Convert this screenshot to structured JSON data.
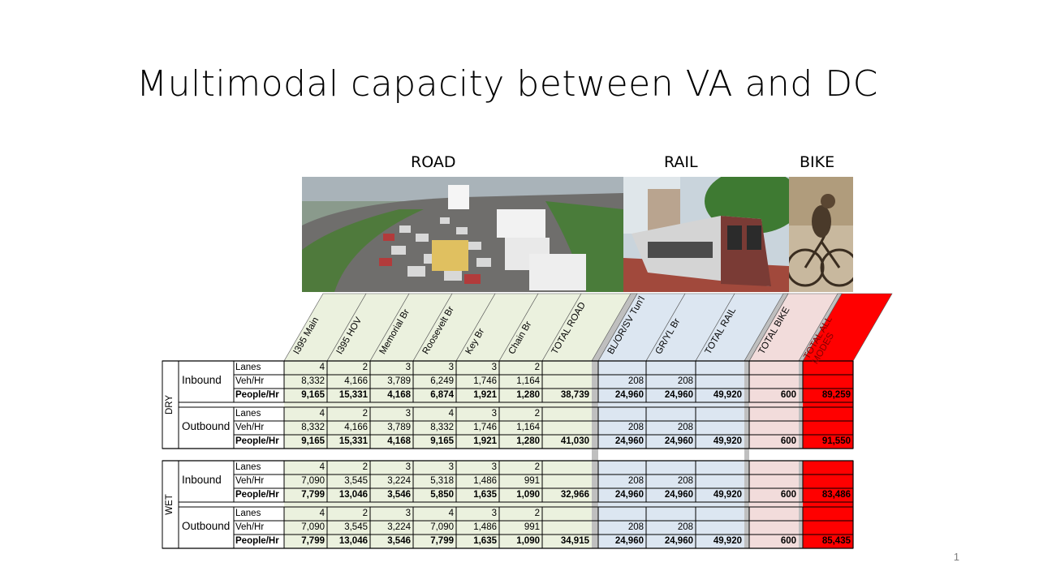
{
  "slide": {
    "title": "Multimodal capacity between VA and DC",
    "page_number": "1"
  },
  "sections": {
    "road": "ROAD",
    "rail": "RAIL",
    "bike": "BIKE"
  },
  "images": [
    {
      "name": "road-traffic-photo",
      "desc_icon": "highway-traffic-icon"
    },
    {
      "name": "rail-train-photo",
      "desc_icon": "metro-train-icon"
    },
    {
      "name": "bike-cyclist-photo",
      "desc_icon": "cyclist-icon"
    }
  ],
  "columns": [
    "I395 Main",
    "I395 HOV",
    "Memorial Br",
    "Roosevelt Br",
    "Key Br",
    "Chain Br",
    "TOTAL ROAD",
    "BL/OR/SV Tun'l",
    "GR/YL Br",
    "TOTAL RAIL",
    "TOTAL BIKE",
    "TOTAL ALL MODES"
  ],
  "row_labels": {
    "lanes": "Lanes",
    "veh": "Veh/Hr",
    "people": "People/Hr"
  },
  "conditions": [
    {
      "name": "DRY",
      "directions": [
        {
          "name": "Inbound",
          "lanes": [
            "4",
            "2",
            "3",
            "3",
            "3",
            "2",
            "",
            "",
            "",
            "",
            "",
            ""
          ],
          "veh": [
            "8,332",
            "4,166",
            "3,789",
            "6,249",
            "1,746",
            "1,164",
            "",
            "208",
            "208",
            "",
            "",
            ""
          ],
          "people": [
            "9,165",
            "15,331",
            "4,168",
            "6,874",
            "1,921",
            "1,280",
            "38,739",
            "24,960",
            "24,960",
            "49,920",
            "600",
            "89,259"
          ]
        },
        {
          "name": "Outbound",
          "lanes": [
            "4",
            "2",
            "3",
            "4",
            "3",
            "2",
            "",
            "",
            "",
            "",
            "",
            ""
          ],
          "veh": [
            "8,332",
            "4,166",
            "3,789",
            "8,332",
            "1,746",
            "1,164",
            "",
            "208",
            "208",
            "",
            "",
            ""
          ],
          "people": [
            "9,165",
            "15,331",
            "4,168",
            "9,165",
            "1,921",
            "1,280",
            "41,030",
            "24,960",
            "24,960",
            "49,920",
            "600",
            "91,550"
          ]
        }
      ]
    },
    {
      "name": "WET",
      "directions": [
        {
          "name": "Inbound",
          "lanes": [
            "4",
            "2",
            "3",
            "3",
            "3",
            "2",
            "",
            "",
            "",
            "",
            "",
            ""
          ],
          "veh": [
            "7,090",
            "3,545",
            "3,224",
            "5,318",
            "1,486",
            "991",
            "",
            "208",
            "208",
            "",
            "",
            ""
          ],
          "people": [
            "7,799",
            "13,046",
            "3,546",
            "5,850",
            "1,635",
            "1,090",
            "32,966",
            "24,960",
            "24,960",
            "49,920",
            "600",
            "83,486"
          ]
        },
        {
          "name": "Outbound",
          "lanes": [
            "4",
            "2",
            "3",
            "4",
            "3",
            "2",
            "",
            "",
            "",
            "",
            "",
            ""
          ],
          "veh": [
            "7,090",
            "3,545",
            "3,224",
            "7,090",
            "1,486",
            "991",
            "",
            "208",
            "208",
            "",
            "",
            ""
          ],
          "people": [
            "7,799",
            "13,046",
            "3,546",
            "7,799",
            "1,635",
            "1,090",
            "34,915",
            "24,960",
            "24,960",
            "49,920",
            "600",
            "85,435"
          ]
        }
      ]
    }
  ],
  "colors": {
    "road": "#ebf1de",
    "rail": "#dce6f1",
    "bike": "#f2dcdb",
    "total": "#ff0000",
    "separator": "#bfbfbf"
  }
}
